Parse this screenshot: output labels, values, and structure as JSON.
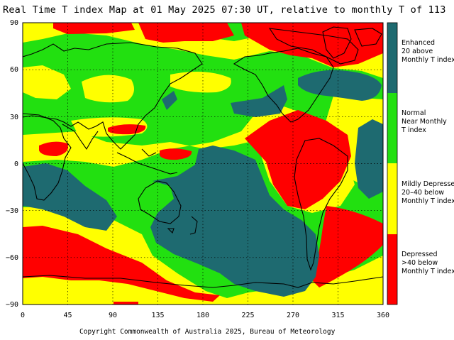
{
  "title": "Real Time T index Map at 01 May 2025 07:30 UT, relative to monthly T of 113",
  "copyright": "Copyright Commonwealth of Australia 2025, Bureau of Meteorology",
  "axes": {
    "lon_ticks": [
      "0",
      "45",
      "90",
      "135",
      "180",
      "225",
      "270",
      "315",
      "360"
    ],
    "lat_ticks": [
      "90",
      "60",
      "30",
      "0",
      "−30",
      "−60",
      "−90"
    ]
  },
  "legend": [
    {
      "lines": [
        "Enhanced",
        "20 above",
        "Monthly T index"
      ],
      "color": "#1e6a70"
    },
    {
      "lines": [
        "Normal",
        "Near Monthly",
        "T index"
      ],
      "color": "#22e010"
    },
    {
      "lines": [
        "Mildly Depressed",
        "20–40 below",
        "Monthly T index"
      ],
      "color": "#ffff00"
    },
    {
      "lines": [
        "Depressed",
        ">40 below",
        "Monthly T index"
      ],
      "color": "#ff0000"
    }
  ],
  "colors": {
    "enhanced": "#1e6a70",
    "normal": "#22e010",
    "mildly_depressed": "#ffff00",
    "depressed": "#ff0000"
  }
}
